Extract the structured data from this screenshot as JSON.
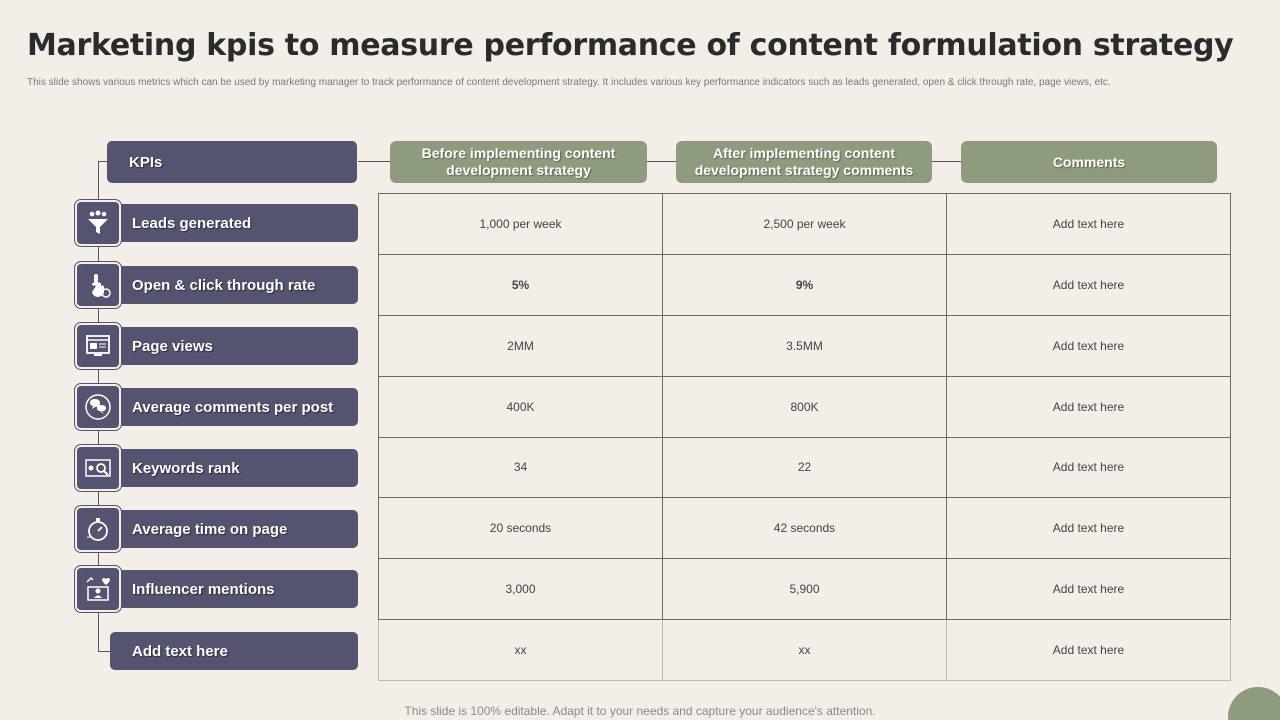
{
  "title": "Marketing kpis to measure performance of content formulation strategy",
  "subtitle": "This slide shows various metrics which can be used by marketing manager to track performance of content development strategy. It includes various key performance indicators such as leads generated, open & click through rate, page views, etc.",
  "headers": {
    "kpis": "KPIs",
    "before": "Before implementing content development strategy",
    "after": "After implementing content development strategy comments",
    "comments": "Comments"
  },
  "rows": [
    {
      "kpi": "Leads generated",
      "icon": "funnel-people-icon",
      "before": "1,000  per week",
      "after": "2,500  per week",
      "comment": "Add text here"
    },
    {
      "kpi": "Open & click through rate",
      "icon": "hand-click-icon",
      "before": "5%",
      "after": "9%",
      "comment": "Add text here"
    },
    {
      "kpi": "Page views",
      "icon": "web-page-icon",
      "before": "2MM",
      "after": "3.5MM",
      "comment": "Add text here"
    },
    {
      "kpi": "Average comments per post",
      "icon": "chat-bubbles-icon",
      "before": "400K",
      "after": "800K",
      "comment": "Add text here"
    },
    {
      "kpi": "Keywords rank",
      "icon": "keyword-search-icon",
      "before": "34",
      "after": "22",
      "comment": "Add text here"
    },
    {
      "kpi": "Average time on page",
      "icon": "stopwatch-icon",
      "before": "20 seconds",
      "after": "42 seconds",
      "comment": "Add text here"
    },
    {
      "kpi": "Influencer mentions",
      "icon": "influencer-icon",
      "before": "3,000",
      "after": "5,900",
      "comment": "Add text here"
    },
    {
      "kpi": "Add text here",
      "icon": "",
      "before": "xx",
      "after": "xx",
      "comment": "Add text here"
    }
  ],
  "footer": "This slide is 100% editable. Adapt it to your needs and capture your audience's attention.",
  "colors": {
    "kpi_box": "#545470",
    "header_green": "#8f9b7e",
    "background": "#f3eee8"
  }
}
